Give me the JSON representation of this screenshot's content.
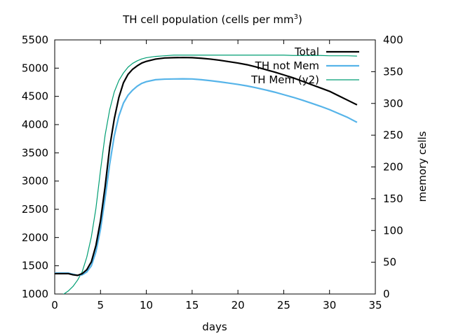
{
  "chart_data": {
    "type": "line",
    "title": "TH cell population (cells per mm",
    "title_superscript": "3",
    "title_suffix": ")",
    "xlabel": "days",
    "ylabel": "",
    "y2label": "memory cells",
    "xlim": [
      0,
      35
    ],
    "ylim": [
      1000,
      5500
    ],
    "y2lim": [
      0,
      400
    ],
    "x_ticks": [
      0,
      5,
      10,
      15,
      20,
      25,
      30,
      35
    ],
    "y_ticks": [
      1000,
      1500,
      2000,
      2500,
      3000,
      3500,
      4000,
      4500,
      5000,
      5500
    ],
    "y2_ticks": [
      0,
      50,
      100,
      150,
      200,
      250,
      300,
      350,
      400
    ],
    "grid": false,
    "legend_position": "top-right",
    "series": [
      {
        "name": "Total",
        "axis": "y",
        "color": "#000000",
        "width": 2.2,
        "x": [
          0,
          1,
          1.5,
          2,
          2.5,
          3,
          3.5,
          4,
          4.5,
          5,
          5.5,
          6,
          6.5,
          7,
          7.5,
          8,
          8.5,
          9,
          9.5,
          10,
          11,
          12,
          13,
          14,
          15,
          16,
          17,
          18,
          19,
          20,
          21,
          22,
          23,
          24,
          25,
          26,
          27,
          28,
          29,
          30,
          31,
          32,
          33
        ],
        "values": [
          1360,
          1360,
          1360,
          1340,
          1330,
          1360,
          1430,
          1570,
          1860,
          2300,
          2900,
          3600,
          4100,
          4480,
          4740,
          4890,
          4980,
          5040,
          5090,
          5120,
          5160,
          5180,
          5185,
          5188,
          5185,
          5175,
          5160,
          5140,
          5115,
          5090,
          5060,
          5020,
          4975,
          4930,
          4880,
          4830,
          4770,
          4710,
          4650,
          4590,
          4510,
          4430,
          4350
        ]
      },
      {
        "name": "TH not Mem",
        "axis": "y",
        "color": "#56b4e9",
        "width": 2.2,
        "x": [
          0,
          1,
          1.5,
          2,
          2.5,
          3,
          3.5,
          4,
          4.5,
          5,
          5.5,
          6,
          6.5,
          7,
          7.5,
          8,
          8.5,
          9,
          9.5,
          10,
          11,
          12,
          13,
          14,
          15,
          16,
          17,
          18,
          19,
          20,
          21,
          22,
          23,
          24,
          25,
          26,
          27,
          28,
          29,
          30,
          31,
          32,
          33
        ],
        "values": [
          1370,
          1370,
          1370,
          1350,
          1330,
          1340,
          1390,
          1500,
          1750,
          2150,
          2700,
          3300,
          3800,
          4150,
          4380,
          4520,
          4610,
          4680,
          4730,
          4760,
          4795,
          4805,
          4808,
          4810,
          4808,
          4795,
          4778,
          4758,
          4735,
          4712,
          4685,
          4652,
          4615,
          4575,
          4530,
          4485,
          4435,
          4380,
          4325,
          4265,
          4195,
          4125,
          4040
        ]
      },
      {
        "name": "TH Mem (y2)",
        "axis": "y2",
        "color": "#009e73",
        "width": 1.2,
        "x": [
          0,
          1,
          1.5,
          2,
          2.5,
          3,
          3.5,
          4,
          4.5,
          5,
          5.5,
          6,
          6.5,
          7,
          7.5,
          8,
          8.5,
          9,
          9.5,
          10,
          11,
          12,
          13,
          14,
          15,
          16,
          17,
          18,
          19,
          20,
          21,
          22,
          23,
          24,
          25,
          26,
          27,
          28,
          29,
          30,
          31,
          32,
          33
        ],
        "values": [
          -5,
          0,
          5,
          12,
          22,
          35,
          58,
          90,
          135,
          195,
          250,
          290,
          318,
          336,
          348,
          357,
          363,
          367,
          370,
          372,
          374,
          375,
          376,
          376,
          376,
          376,
          376,
          376,
          376,
          376,
          376,
          376,
          376,
          376,
          376,
          375.5,
          375.5,
          375.5,
          375.5,
          375,
          375,
          375,
          374.5
        ]
      }
    ]
  }
}
